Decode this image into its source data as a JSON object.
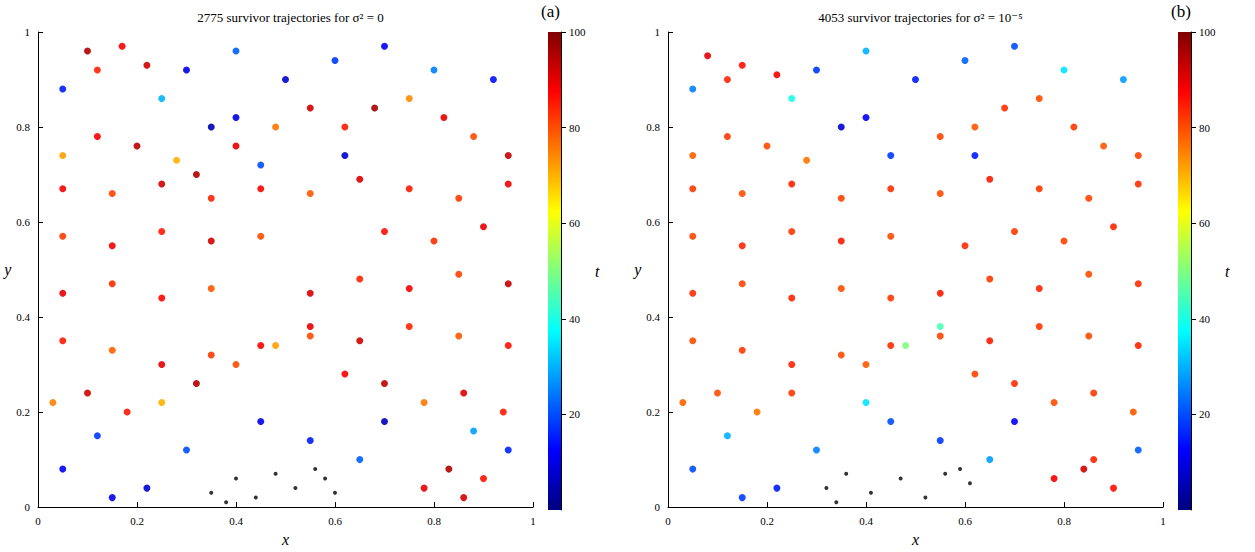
{
  "chart_data": [
    {
      "type": "scatter",
      "title": "2775 survivor trajectories for σ² = 0",
      "label": "(a)",
      "xlabel": "x",
      "ylabel": "y",
      "xlim": [
        0,
        1
      ],
      "ylim": [
        0,
        1
      ],
      "xticks": [
        0,
        0.2,
        0.4,
        0.6,
        0.8,
        1
      ],
      "yticks": [
        0,
        0.2,
        0.4,
        0.6,
        0.8,
        1
      ],
      "colorbar": {
        "label": "t",
        "range": [
          0,
          100
        ],
        "ticks": [
          20,
          40,
          60,
          80,
          100
        ]
      },
      "points": [
        [
          0.05,
          0.35,
          85
        ],
        [
          0.15,
          0.33,
          78
        ],
        [
          0.25,
          0.3,
          90
        ],
        [
          0.35,
          0.32,
          82
        ],
        [
          0.45,
          0.34,
          88
        ],
        [
          0.55,
          0.36,
          80
        ],
        [
          0.65,
          0.35,
          92
        ],
        [
          0.75,
          0.38,
          84
        ],
        [
          0.85,
          0.36,
          79
        ],
        [
          0.95,
          0.34,
          86
        ],
        [
          0.05,
          0.45,
          90
        ],
        [
          0.15,
          0.47,
          83
        ],
        [
          0.25,
          0.44,
          87
        ],
        [
          0.35,
          0.46,
          79
        ],
        [
          0.55,
          0.45,
          91
        ],
        [
          0.65,
          0.48,
          84
        ],
        [
          0.75,
          0.46,
          88
        ],
        [
          0.85,
          0.49,
          81
        ],
        [
          0.95,
          0.47,
          93
        ],
        [
          0.05,
          0.57,
          82
        ],
        [
          0.15,
          0.55,
          89
        ],
        [
          0.25,
          0.58,
          85
        ],
        [
          0.35,
          0.56,
          92
        ],
        [
          0.45,
          0.57,
          80
        ],
        [
          0.7,
          0.58,
          86
        ],
        [
          0.8,
          0.56,
          83
        ],
        [
          0.9,
          0.59,
          90
        ],
        [
          0.05,
          0.67,
          88
        ],
        [
          0.15,
          0.66,
          81
        ],
        [
          0.25,
          0.68,
          92
        ],
        [
          0.35,
          0.65,
          84
        ],
        [
          0.45,
          0.67,
          87
        ],
        [
          0.55,
          0.66,
          79
        ],
        [
          0.65,
          0.69,
          91
        ],
        [
          0.75,
          0.67,
          85
        ],
        [
          0.85,
          0.65,
          82
        ],
        [
          0.95,
          0.68,
          89
        ],
        [
          0.05,
          0.74,
          72
        ],
        [
          0.12,
          0.78,
          88
        ],
        [
          0.2,
          0.76,
          94
        ],
        [
          0.28,
          0.73,
          70
        ],
        [
          0.32,
          0.7,
          95
        ],
        [
          0.4,
          0.76,
          90
        ],
        [
          0.48,
          0.8,
          76
        ],
        [
          0.55,
          0.84,
          92
        ],
        [
          0.62,
          0.8,
          85
        ],
        [
          0.68,
          0.84,
          96
        ],
        [
          0.75,
          0.86,
          74
        ],
        [
          0.82,
          0.82,
          90
        ],
        [
          0.88,
          0.78,
          80
        ],
        [
          0.95,
          0.74,
          93
        ],
        [
          0.03,
          0.22,
          75
        ],
        [
          0.1,
          0.24,
          92
        ],
        [
          0.18,
          0.2,
          85
        ],
        [
          0.25,
          0.22,
          70
        ],
        [
          0.32,
          0.26,
          95
        ],
        [
          0.4,
          0.3,
          80
        ],
        [
          0.48,
          0.34,
          72
        ],
        [
          0.55,
          0.38,
          90
        ],
        [
          0.62,
          0.28,
          88
        ],
        [
          0.7,
          0.26,
          94
        ],
        [
          0.78,
          0.22,
          76
        ],
        [
          0.86,
          0.24,
          91
        ],
        [
          0.94,
          0.2,
          85
        ],
        [
          0.05,
          0.88,
          15
        ],
        [
          0.3,
          0.92,
          10
        ],
        [
          0.4,
          0.96,
          22
        ],
        [
          0.5,
          0.9,
          8
        ],
        [
          0.6,
          0.94,
          18
        ],
        [
          0.7,
          0.97,
          12
        ],
        [
          0.8,
          0.92,
          25
        ],
        [
          0.92,
          0.9,
          14
        ],
        [
          0.4,
          0.82,
          10
        ],
        [
          0.45,
          0.72,
          20
        ],
        [
          0.35,
          0.8,
          5
        ],
        [
          0.25,
          0.86,
          30
        ],
        [
          0.62,
          0.74,
          8
        ],
        [
          0.1,
          0.96,
          95
        ],
        [
          0.17,
          0.97,
          88
        ],
        [
          0.22,
          0.93,
          92
        ],
        [
          0.12,
          0.92,
          84
        ],
        [
          0.05,
          0.08,
          12
        ],
        [
          0.12,
          0.15,
          18
        ],
        [
          0.22,
          0.04,
          8
        ],
        [
          0.3,
          0.12,
          20
        ],
        [
          0.45,
          0.18,
          10
        ],
        [
          0.55,
          0.14,
          15
        ],
        [
          0.65,
          0.1,
          22
        ],
        [
          0.7,
          0.18,
          6
        ],
        [
          0.95,
          0.12,
          16
        ],
        [
          0.15,
          0.02,
          10
        ],
        [
          0.88,
          0.16,
          28
        ],
        [
          0.78,
          0.04,
          90
        ],
        [
          0.83,
          0.08,
          95
        ],
        [
          0.9,
          0.06,
          86
        ],
        [
          0.86,
          0.02,
          92
        ]
      ],
      "marked_points": {
        "color": "#000000",
        "values": [
          [
            0.35,
            0.03
          ],
          [
            0.4,
            0.06
          ],
          [
            0.44,
            0.02
          ],
          [
            0.48,
            0.07
          ],
          [
            0.52,
            0.04
          ],
          [
            0.56,
            0.08
          ],
          [
            0.6,
            0.03
          ],
          [
            0.38,
            0.01
          ],
          [
            0.58,
            0.06
          ]
        ]
      }
    },
    {
      "type": "scatter",
      "title": "4053 survivor trajectories for σ² = 10⁻⁵",
      "label": "(b)",
      "xlabel": "x",
      "ylabel": "y",
      "xlim": [
        0,
        1
      ],
      "ylim": [
        0,
        1
      ],
      "xticks": [
        0,
        0.2,
        0.4,
        0.6,
        0.8,
        1
      ],
      "yticks": [
        0,
        0.2,
        0.4,
        0.6,
        0.8,
        1
      ],
      "colorbar": {
        "label": "t",
        "range": [
          0,
          100
        ],
        "ticks": [
          20,
          40,
          60,
          80,
          100
        ]
      },
      "points": [
        [
          0.05,
          0.35,
          80
        ],
        [
          0.15,
          0.33,
          82
        ],
        [
          0.25,
          0.3,
          84
        ],
        [
          0.35,
          0.32,
          80
        ],
        [
          0.45,
          0.34,
          83
        ],
        [
          0.55,
          0.36,
          81
        ],
        [
          0.65,
          0.35,
          85
        ],
        [
          0.75,
          0.38,
          82
        ],
        [
          0.85,
          0.36,
          80
        ],
        [
          0.95,
          0.34,
          84
        ],
        [
          0.05,
          0.45,
          83
        ],
        [
          0.15,
          0.47,
          81
        ],
        [
          0.25,
          0.44,
          84
        ],
        [
          0.35,
          0.46,
          80
        ],
        [
          0.45,
          0.44,
          82
        ],
        [
          0.55,
          0.45,
          85
        ],
        [
          0.65,
          0.48,
          82
        ],
        [
          0.75,
          0.46,
          84
        ],
        [
          0.85,
          0.49,
          80
        ],
        [
          0.95,
          0.47,
          83
        ],
        [
          0.05,
          0.57,
          81
        ],
        [
          0.15,
          0.55,
          84
        ],
        [
          0.25,
          0.58,
          82
        ],
        [
          0.35,
          0.56,
          85
        ],
        [
          0.45,
          0.57,
          80
        ],
        [
          0.6,
          0.55,
          83
        ],
        [
          0.7,
          0.58,
          82
        ],
        [
          0.8,
          0.56,
          81
        ],
        [
          0.9,
          0.59,
          84
        ],
        [
          0.05,
          0.67,
          82
        ],
        [
          0.15,
          0.66,
          80
        ],
        [
          0.25,
          0.68,
          84
        ],
        [
          0.35,
          0.65,
          81
        ],
        [
          0.45,
          0.67,
          83
        ],
        [
          0.55,
          0.66,
          80
        ],
        [
          0.65,
          0.69,
          85
        ],
        [
          0.75,
          0.67,
          82
        ],
        [
          0.85,
          0.65,
          81
        ],
        [
          0.95,
          0.68,
          83
        ],
        [
          0.05,
          0.74,
          78
        ],
        [
          0.12,
          0.78,
          82
        ],
        [
          0.2,
          0.76,
          80
        ],
        [
          0.28,
          0.73,
          76
        ],
        [
          0.55,
          0.78,
          81
        ],
        [
          0.62,
          0.8,
          79
        ],
        [
          0.68,
          0.84,
          83
        ],
        [
          0.75,
          0.86,
          80
        ],
        [
          0.82,
          0.8,
          82
        ],
        [
          0.88,
          0.76,
          79
        ],
        [
          0.95,
          0.74,
          81
        ],
        [
          0.03,
          0.22,
          78
        ],
        [
          0.1,
          0.24,
          80
        ],
        [
          0.18,
          0.2,
          76
        ],
        [
          0.25,
          0.24,
          82
        ],
        [
          0.4,
          0.3,
          79
        ],
        [
          0.48,
          0.34,
          50
        ],
        [
          0.55,
          0.38,
          45
        ],
        [
          0.62,
          0.28,
          81
        ],
        [
          0.7,
          0.26,
          83
        ],
        [
          0.78,
          0.22,
          80
        ],
        [
          0.86,
          0.24,
          82
        ],
        [
          0.94,
          0.2,
          79
        ],
        [
          0.05,
          0.88,
          25
        ],
        [
          0.3,
          0.92,
          18
        ],
        [
          0.4,
          0.96,
          30
        ],
        [
          0.5,
          0.9,
          15
        ],
        [
          0.6,
          0.94,
          22
        ],
        [
          0.7,
          0.97,
          20
        ],
        [
          0.8,
          0.92,
          35
        ],
        [
          0.92,
          0.9,
          28
        ],
        [
          0.4,
          0.82,
          12
        ],
        [
          0.45,
          0.74,
          18
        ],
        [
          0.35,
          0.8,
          8
        ],
        [
          0.25,
          0.86,
          40
        ],
        [
          0.62,
          0.74,
          15
        ],
        [
          0.08,
          0.95,
          90
        ],
        [
          0.15,
          0.93,
          86
        ],
        [
          0.22,
          0.91,
          88
        ],
        [
          0.12,
          0.9,
          84
        ],
        [
          0.05,
          0.08,
          20
        ],
        [
          0.12,
          0.15,
          30
        ],
        [
          0.22,
          0.04,
          15
        ],
        [
          0.3,
          0.12,
          25
        ],
        [
          0.45,
          0.18,
          20
        ],
        [
          0.55,
          0.14,
          18
        ],
        [
          0.65,
          0.1,
          28
        ],
        [
          0.7,
          0.18,
          12
        ],
        [
          0.95,
          0.12,
          22
        ],
        [
          0.15,
          0.02,
          18
        ],
        [
          0.4,
          0.22,
          35
        ],
        [
          0.78,
          0.06,
          88
        ],
        [
          0.84,
          0.08,
          92
        ],
        [
          0.9,
          0.04,
          86
        ],
        [
          0.86,
          0.1,
          84
        ]
      ],
      "marked_points": {
        "color": "#000000",
        "values": [
          [
            0.32,
            0.04
          ],
          [
            0.36,
            0.07
          ],
          [
            0.41,
            0.03
          ],
          [
            0.47,
            0.06
          ],
          [
            0.52,
            0.02
          ],
          [
            0.56,
            0.07
          ],
          [
            0.61,
            0.05
          ],
          [
            0.34,
            0.01
          ],
          [
            0.59,
            0.08
          ]
        ]
      }
    }
  ]
}
